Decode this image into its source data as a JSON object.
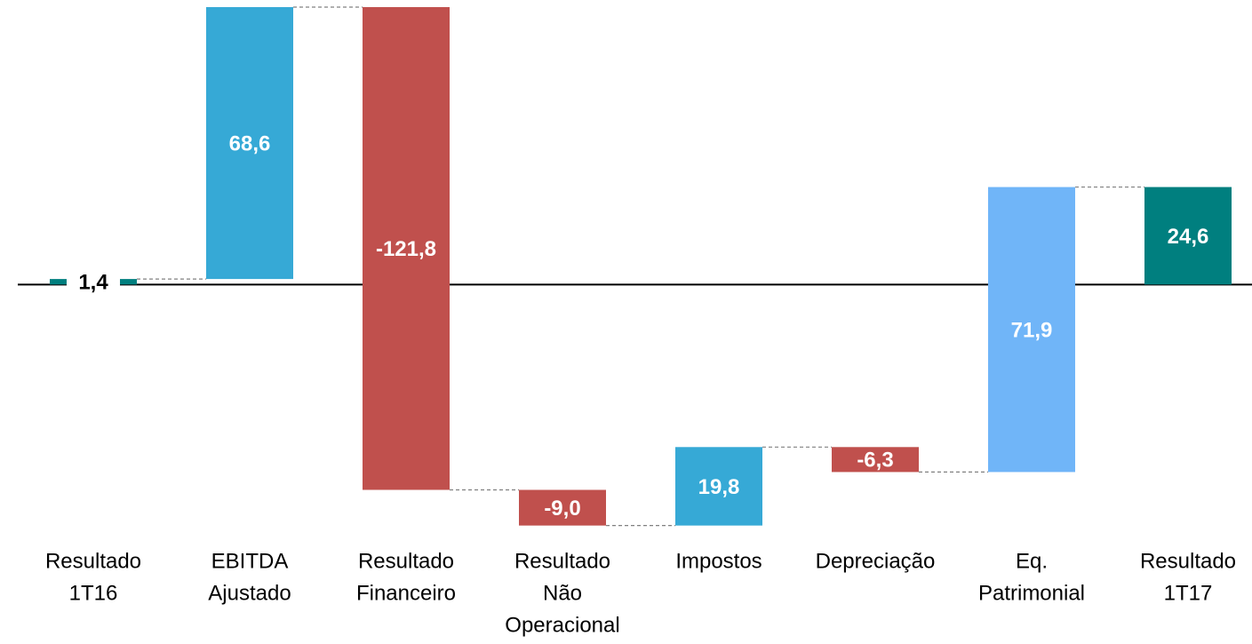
{
  "chart_data": {
    "type": "waterfall",
    "categories": [
      [
        "Resultado",
        "1T16"
      ],
      [
        "EBITDA",
        "Ajustado"
      ],
      [
        "Resultado",
        "Financeiro"
      ],
      [
        "Resultado",
        "Não",
        "Operacional"
      ],
      [
        "Impostos"
      ],
      [
        "Depreciação"
      ],
      [
        "Eq.",
        "Patrimonial"
      ],
      [
        "Resultado",
        "1T17"
      ]
    ],
    "values": [
      1.4,
      68.6,
      -121.8,
      -9.0,
      19.8,
      -6.3,
      71.9,
      24.6
    ],
    "value_labels": [
      "1,4",
      "68,6",
      "-121,8",
      "-9,0",
      "19,8",
      "-6,3",
      "71,9",
      "24,6"
    ],
    "measure": [
      "total",
      "relative",
      "relative",
      "relative",
      "relative",
      "relative",
      "relative",
      "total"
    ],
    "colors": [
      "#007f7f",
      "#36a9d6",
      "#c0504d",
      "#c0504d",
      "#36a9d6",
      "#c0504d",
      "#70b5f8",
      "#007f7f"
    ],
    "ylim": [
      -62,
      70
    ]
  }
}
